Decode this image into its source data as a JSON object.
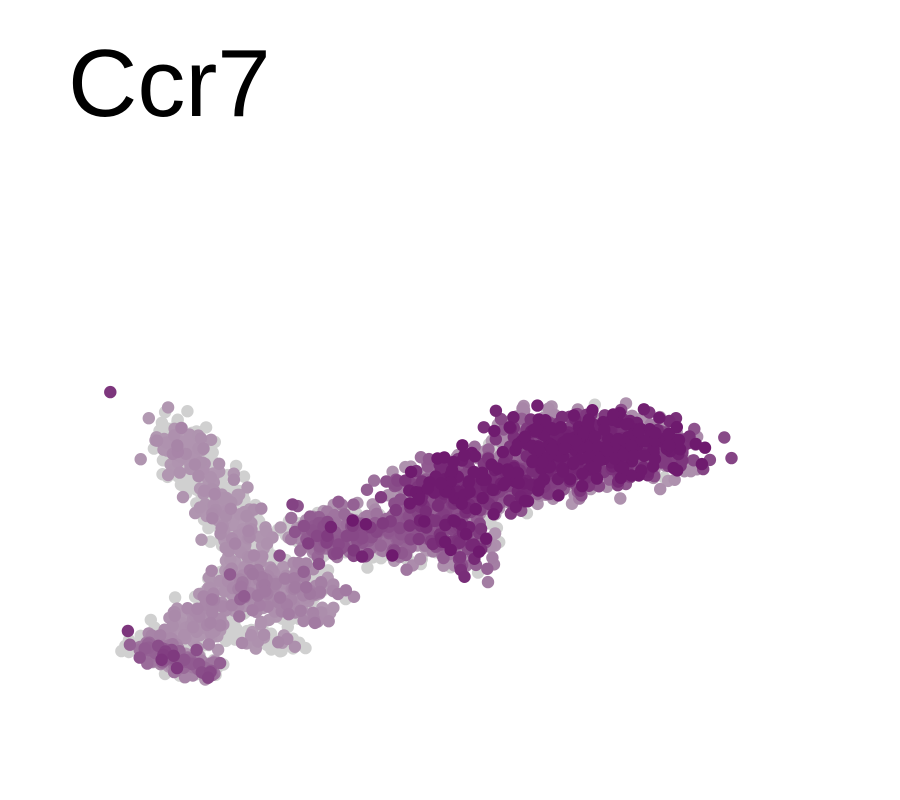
{
  "chart_data": {
    "type": "scatter",
    "title": "Ccr7",
    "xlabel": "",
    "ylabel": "",
    "axes_visible": false,
    "grid": false,
    "legend": "none",
    "xlim": [
      0,
      100
    ],
    "ylim": [
      0,
      60
    ],
    "color_scale": {
      "low": "#d0d0d0",
      "high": "#6e1a6e",
      "background": "#ffffff"
    },
    "clusters": [
      {
        "name": "",
        "x": [
          20.0,
          30.0
        ],
        "y": [
          7.0,
          5.0
        ],
        "spread": [
          1.3,
          1.0
        ],
        "n": 60,
        "expr_mean": 0.05,
        "expr_sd": 0.05
      },
      {
        "name": "",
        "x": [
          48.0,
          70.0
        ],
        "y": [
          17.0,
          43.0
        ],
        "spread": [
          0.6,
          0.5
        ],
        "n": 40,
        "expr_mean": 0.05,
        "expr_sd": 0.06
      },
      {
        "name": "",
        "x": [
          4.0,
          16.0
        ],
        "y": [
          5.0,
          0.0
        ],
        "spread": [
          1.5,
          1.1
        ],
        "n": 220,
        "expr_mean": 0.25,
        "expr_sd": 0.22
      },
      {
        "name": "",
        "x": [
          10.0,
          20.0
        ],
        "y": [
          4.0,
          15.0
        ],
        "spread": [
          2.0,
          2.0
        ],
        "n": 260,
        "expr_mean": 0.05,
        "expr_sd": 0.08
      },
      {
        "name": "",
        "x": [
          20.0,
          34.0
        ],
        "y": [
          16.0,
          14.0
        ],
        "spread": [
          2.6,
          2.4
        ],
        "n": 380,
        "expr_mean": 0.08,
        "expr_sd": 0.1
      },
      {
        "name": "",
        "x": [
          10.0,
          24.0
        ],
        "y": [
          45.0,
          21.0
        ],
        "spread": [
          2.2,
          2.0
        ],
        "n": 520,
        "expr_mean": 0.03,
        "expr_sd": 0.06
      },
      {
        "name": "",
        "x": [
          32.0,
          50.0
        ],
        "y": [
          26.0,
          25.0
        ],
        "spread": [
          2.8,
          2.2
        ],
        "n": 520,
        "expr_mean": 0.28,
        "expr_sd": 0.22
      },
      {
        "name": "",
        "x": [
          52.0,
          60.0
        ],
        "y": [
          30.0,
          22.0
        ],
        "spread": [
          2.2,
          2.5
        ],
        "n": 300,
        "expr_mean": 0.45,
        "expr_sd": 0.25
      },
      {
        "name": "",
        "x": [
          50.0,
          76.0
        ],
        "y": [
          33.0,
          38.0
        ],
        "spread": [
          3.2,
          2.7
        ],
        "n": 900,
        "expr_mean": 0.58,
        "expr_sd": 0.26
      },
      {
        "name": "",
        "x": [
          68.0,
          92.0
        ],
        "y": [
          43.0,
          41.0
        ],
        "spread": [
          3.2,
          2.6
        ],
        "n": 900,
        "expr_mean": 0.72,
        "expr_sd": 0.24
      },
      {
        "name": "",
        "x": [
          0.0,
          0.0
        ],
        "y": [
          52.0,
          52.0
        ],
        "spread": [
          0.2,
          0.2
        ],
        "n": 1,
        "expr_mean": 0.7,
        "expr_sd": 0.0
      }
    ]
  }
}
